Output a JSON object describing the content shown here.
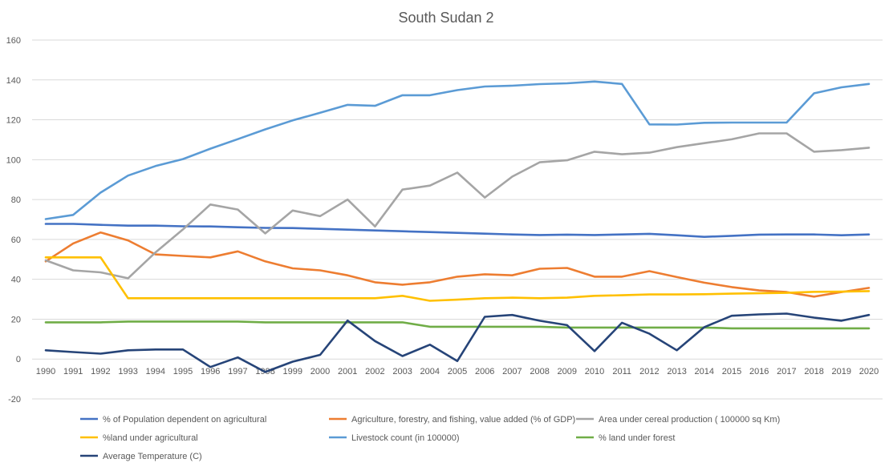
{
  "chart_data": {
    "type": "line",
    "title": "South Sudan 2",
    "xlabel": "",
    "ylabel": "",
    "ylim": [
      -20,
      160
    ],
    "yticks": [
      -20,
      0,
      20,
      40,
      60,
      80,
      100,
      120,
      140,
      160
    ],
    "grid": true,
    "legend_position": "bottom",
    "categories": [
      "1990",
      "1991",
      "1992",
      "1993",
      "1994",
      "1995",
      "1996",
      "1997",
      "1998",
      "1999",
      "2000",
      "2001",
      "2002",
      "2003",
      "2004",
      "2005",
      "2006",
      "2007",
      "2008",
      "2009",
      "2010",
      "2011",
      "2012",
      "2013",
      "2014",
      "2015",
      "2016",
      "2017",
      "2018",
      "2019",
      "2020"
    ],
    "series": [
      {
        "name": "% of Population dependent on agricultural",
        "color": "#4472c4",
        "values": [
          67.8,
          67.8,
          67.3,
          66.9,
          66.9,
          66.6,
          66.5,
          66.1,
          65.8,
          65.7,
          65.3,
          64.9,
          64.5,
          64.1,
          63.7,
          63.3,
          62.9,
          62.5,
          62.2,
          62.4,
          62.2,
          62.5,
          62.8,
          62.1,
          61.3,
          61.8,
          62.4,
          62.5,
          62.5,
          62.1,
          62.5
        ]
      },
      {
        "name": "Agriculture, forestry, and fishing, value added (% of GDP)",
        "color": "#ed7d31",
        "values": [
          49,
          58,
          63.5,
          59.5,
          52.5,
          51.7,
          51,
          54,
          49,
          45.5,
          44.5,
          42,
          38.5,
          37.3,
          38.5,
          41.3,
          42.5,
          42,
          45.3,
          45.7,
          41.3,
          41.3,
          44.1,
          41.1,
          38.3,
          36.1,
          34.4,
          33.6,
          31.3,
          33.6,
          35.7
        ]
      },
      {
        "name": "Area under cereal production ( 100000 sq Km)",
        "color": "#a5a5a5",
        "values": [
          49.5,
          44.5,
          43.5,
          40.5,
          53.5,
          65,
          77.5,
          75,
          63,
          74.5,
          71.7,
          80,
          66.5,
          85,
          87,
          93.5,
          81,
          91.5,
          98.7,
          99.7,
          104,
          102.7,
          103.5,
          106.3,
          108.3,
          110.2,
          113.2,
          113.2,
          104,
          104.8,
          106
        ]
      },
      {
        "name": "%land under agricultural",
        "color": "#ffc000",
        "values": [
          51,
          51,
          51,
          30.5,
          30.5,
          30.5,
          30.5,
          30.5,
          30.5,
          30.5,
          30.5,
          30.5,
          30.5,
          31.7,
          29.2,
          29.8,
          30.5,
          30.8,
          30.5,
          30.8,
          31.7,
          32,
          32.4,
          32.4,
          32.5,
          32.8,
          33,
          33.2,
          33.7,
          33.8,
          34.1
        ]
      },
      {
        "name": "Livestock count (in 100000)",
        "color": "#5b9bd5",
        "values": [
          70.2,
          72.3,
          83.5,
          92,
          96.8,
          100.3,
          105.5,
          110.3,
          115.2,
          119.7,
          123.5,
          127.5,
          127,
          132.3,
          132.3,
          134.9,
          136.7,
          137.1,
          137.9,
          138.3,
          139.2,
          138,
          117.7,
          117.6,
          118.5,
          118.6,
          118.6,
          118.6,
          133.3,
          136.3,
          138
        ]
      },
      {
        "name": "% land under forest",
        "color": "#70ad47",
        "values": [
          18.4,
          18.4,
          18.4,
          18.8,
          18.8,
          18.8,
          18.8,
          18.8,
          18.4,
          18.4,
          18.4,
          18.4,
          18.4,
          18.4,
          16.2,
          16.2,
          16.2,
          16.2,
          16.2,
          15.8,
          15.8,
          15.8,
          15.8,
          15.8,
          15.8,
          15.4,
          15.4,
          15.4,
          15.4,
          15.4,
          15.4
        ]
      },
      {
        "name": "Average Temperature (C)",
        "color": "#264478",
        "values": [
          4.4,
          3.5,
          2.7,
          4.4,
          4.8,
          4.8,
          -4,
          0.8,
          -6.5,
          -1.3,
          2.1,
          19.3,
          9,
          1.5,
          7.2,
          -1,
          21.2,
          22.1,
          19.2,
          17,
          4,
          18.2,
          12.7,
          4.4,
          16,
          21.7,
          22.4,
          22.8,
          20.8,
          19.2,
          22.1
        ]
      }
    ]
  }
}
